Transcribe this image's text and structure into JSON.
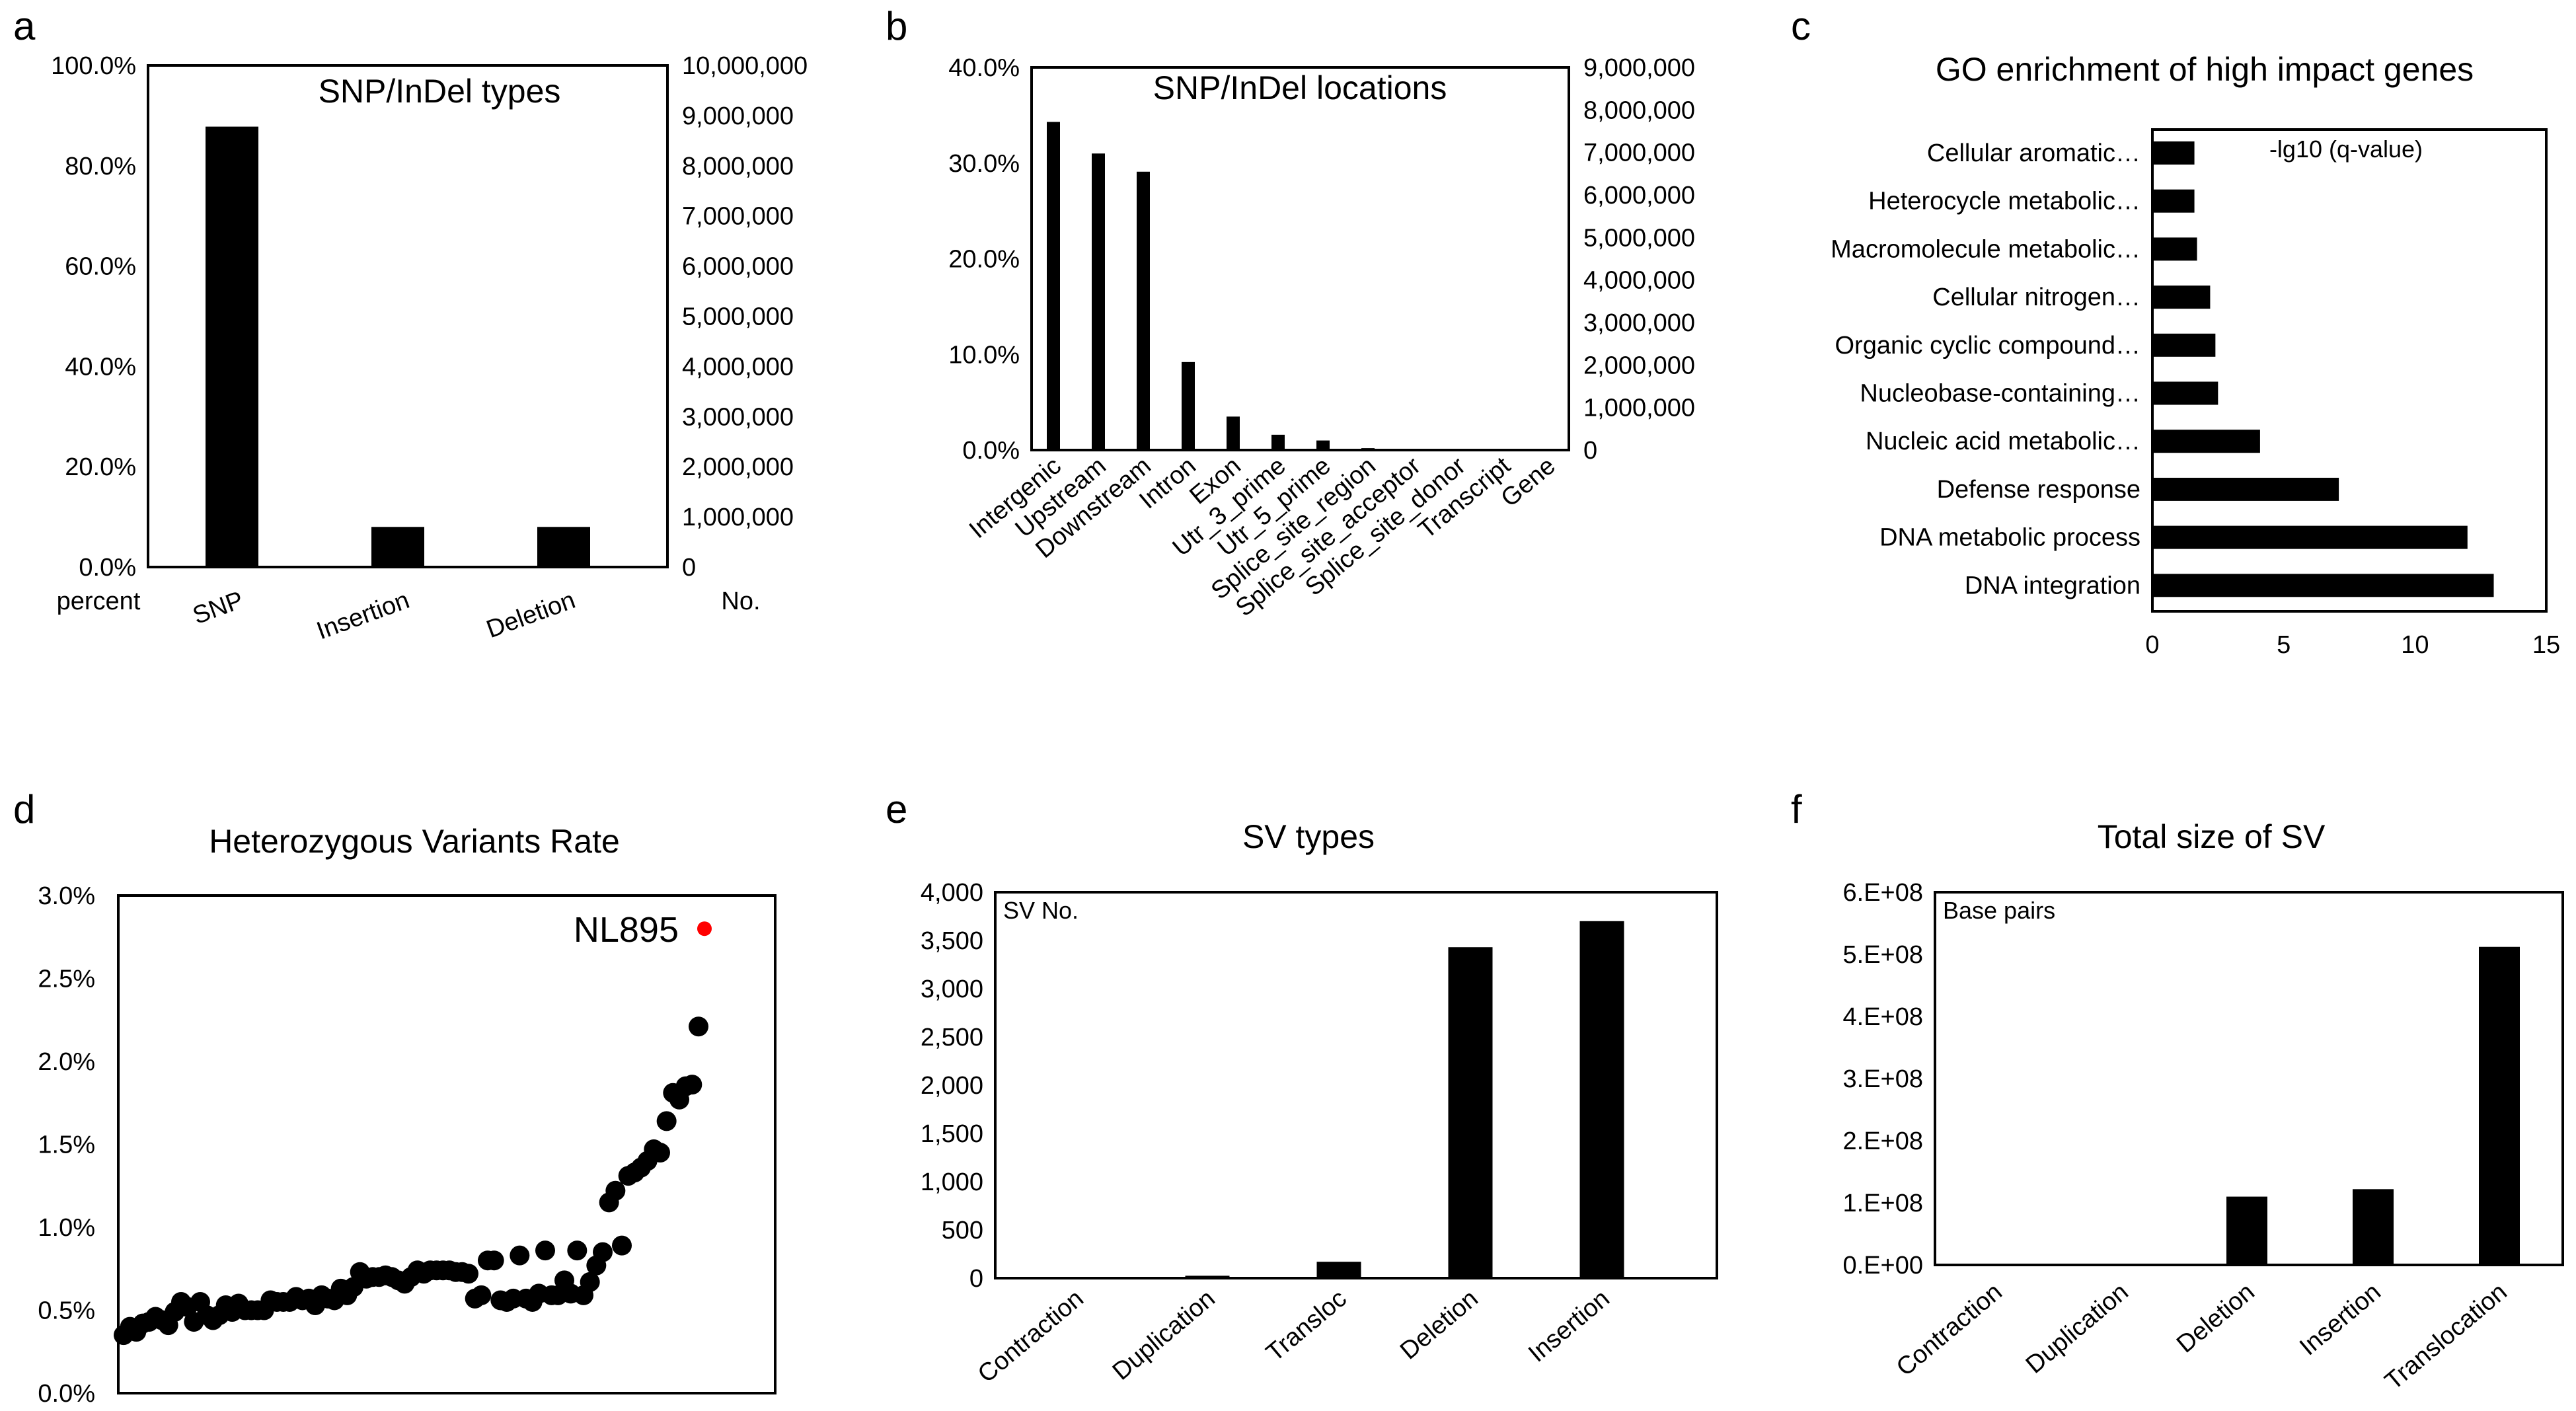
{
  "panel_letters": [
    "a",
    "b",
    "c",
    "d",
    "e",
    "f"
  ],
  "chart_data": [
    {
      "type": "bar",
      "title": "SNP/InDel types",
      "categories": [
        "SNP",
        "Insertion",
        "Deletion"
      ],
      "values": [
        87.8,
        8.0,
        8.0
      ],
      "ylim": [
        0,
        100
      ],
      "y_ticklabels": [
        "0.0%",
        "20.0%",
        "40.0%",
        "60.0%",
        "80.0%",
        "100.0%"
      ],
      "y2lim": [
        0,
        10000000
      ],
      "y2_ticklabels": [
        "0",
        "1,000,000",
        "2,000,000",
        "3,000,000",
        "4,000,000",
        "5,000,000",
        "6,000,000",
        "7,000,000",
        "8,000,000",
        "9,000,000",
        "10,000,000"
      ],
      "ylabel": "percent",
      "y2label": "No.",
      "bar_color": "#000000"
    },
    {
      "type": "bar",
      "title": "SNP/InDel locations",
      "categories": [
        "Intergenic",
        "Upstream",
        "Downstream",
        "Intron",
        "Exon",
        "Utr_3_prime",
        "Utr_5_prime",
        "Splice_site_region",
        "Splice_site_acceptor",
        "Splice_site_donor",
        "Transcript",
        "Gene"
      ],
      "values": [
        34.3,
        31.0,
        29.1,
        9.2,
        3.5,
        1.6,
        1.0,
        0.2,
        0,
        0,
        0,
        0
      ],
      "ylim": [
        0,
        40
      ],
      "y_ticklabels": [
        "0.0%",
        "10.0%",
        "20.0%",
        "30.0%",
        "40.0%"
      ],
      "y2lim": [
        0,
        9000000
      ],
      "y2_ticklabels": [
        "0",
        "1,000,000",
        "2,000,000",
        "3,000,000",
        "4,000,000",
        "5,000,000",
        "6,000,000",
        "7,000,000",
        "8,000,000",
        "9,000,000"
      ],
      "bar_color": "#000000"
    },
    {
      "type": "bar",
      "orientation": "horizontal",
      "title": "GO enrichment of high impact genes",
      "categories": [
        "Cellular aromatic…",
        "Heterocycle metabolic…",
        "Macromolecule metabolic…",
        "Cellular nitrogen…",
        "Organic cyclic compound…",
        "Nucleobase-containing…",
        "Nucleic acid metabolic…",
        "Defense response",
        "DNA metabolic process",
        "DNA integration"
      ],
      "values": [
        1.6,
        1.6,
        1.7,
        2.2,
        2.4,
        2.5,
        4.1,
        7.1,
        12.0,
        13.0
      ],
      "xlim": [
        0,
        15
      ],
      "x_ticklabels": [
        "0",
        "5",
        "10",
        "15"
      ],
      "annotation": "-lg10 (q-value)",
      "bar_color": "#000000"
    },
    {
      "type": "scatter",
      "title": "Heterozygous Variants Rate",
      "ylim": [
        0,
        3.0
      ],
      "y_ticklabels": [
        "0.0%",
        "0.5%",
        "1.0%",
        "1.5%",
        "2.0%",
        "2.5%",
        "3.0%"
      ],
      "values": [
        0.35,
        0.4,
        0.37,
        0.42,
        0.43,
        0.46,
        0.44,
        0.41,
        0.49,
        0.55,
        0.52,
        0.43,
        0.55,
        0.47,
        0.44,
        0.47,
        0.53,
        0.49,
        0.54,
        0.5,
        0.5,
        0.5,
        0.5,
        0.56,
        0.55,
        0.55,
        0.55,
        0.58,
        0.56,
        0.57,
        0.53,
        0.59,
        0.57,
        0.56,
        0.63,
        0.59,
        0.64,
        0.73,
        0.69,
        0.7,
        0.7,
        0.71,
        0.7,
        0.68,
        0.66,
        0.7,
        0.74,
        0.72,
        0.74,
        0.74,
        0.74,
        0.74,
        0.73,
        0.73,
        0.72,
        0.57,
        0.59,
        0.8,
        0.8,
        0.56,
        0.55,
        0.57,
        0.83,
        0.57,
        0.55,
        0.6,
        0.86,
        0.59,
        0.59,
        0.68,
        0.6,
        0.86,
        0.59,
        0.67,
        0.77,
        0.85,
        1.15,
        1.22,
        0.89,
        1.31,
        1.33,
        1.36,
        1.4,
        1.47,
        1.45,
        1.64,
        1.81,
        1.77,
        1.85,
        1.86,
        2.21
      ],
      "highlight": {
        "label": "NL895",
        "value": 2.8,
        "color": "#ff0000"
      },
      "point_color": "#000000"
    },
    {
      "type": "bar",
      "title": "SV types",
      "categories": [
        "Contraction",
        "Duplication",
        "Transloc",
        "Deletion",
        "Insertion"
      ],
      "values": [
        10,
        25,
        170,
        3430,
        3700
      ],
      "ylim": [
        0,
        4000
      ],
      "y_ticklabels": [
        "0",
        "500",
        "1,000",
        "1,500",
        "2,000",
        "2,500",
        "3,000",
        "3,500",
        "4,000"
      ],
      "annotation": "SV No.",
      "bar_color": "#000000"
    },
    {
      "type": "bar",
      "title": "Total size of SV",
      "categories": [
        "Contraction",
        "Duplication",
        "Deletion",
        "Insertion",
        "Translocation"
      ],
      "values": [
        0,
        0,
        110000000,
        122000000,
        512000000
      ],
      "ylim": [
        0,
        600000000
      ],
      "y_ticklabels": [
        "0.E+00",
        "1.E+08",
        "2.E+08",
        "3.E+08",
        "4.E+08",
        "5.E+08",
        "6.E+08"
      ],
      "annotation": "Base pairs",
      "bar_color": "#000000"
    }
  ]
}
